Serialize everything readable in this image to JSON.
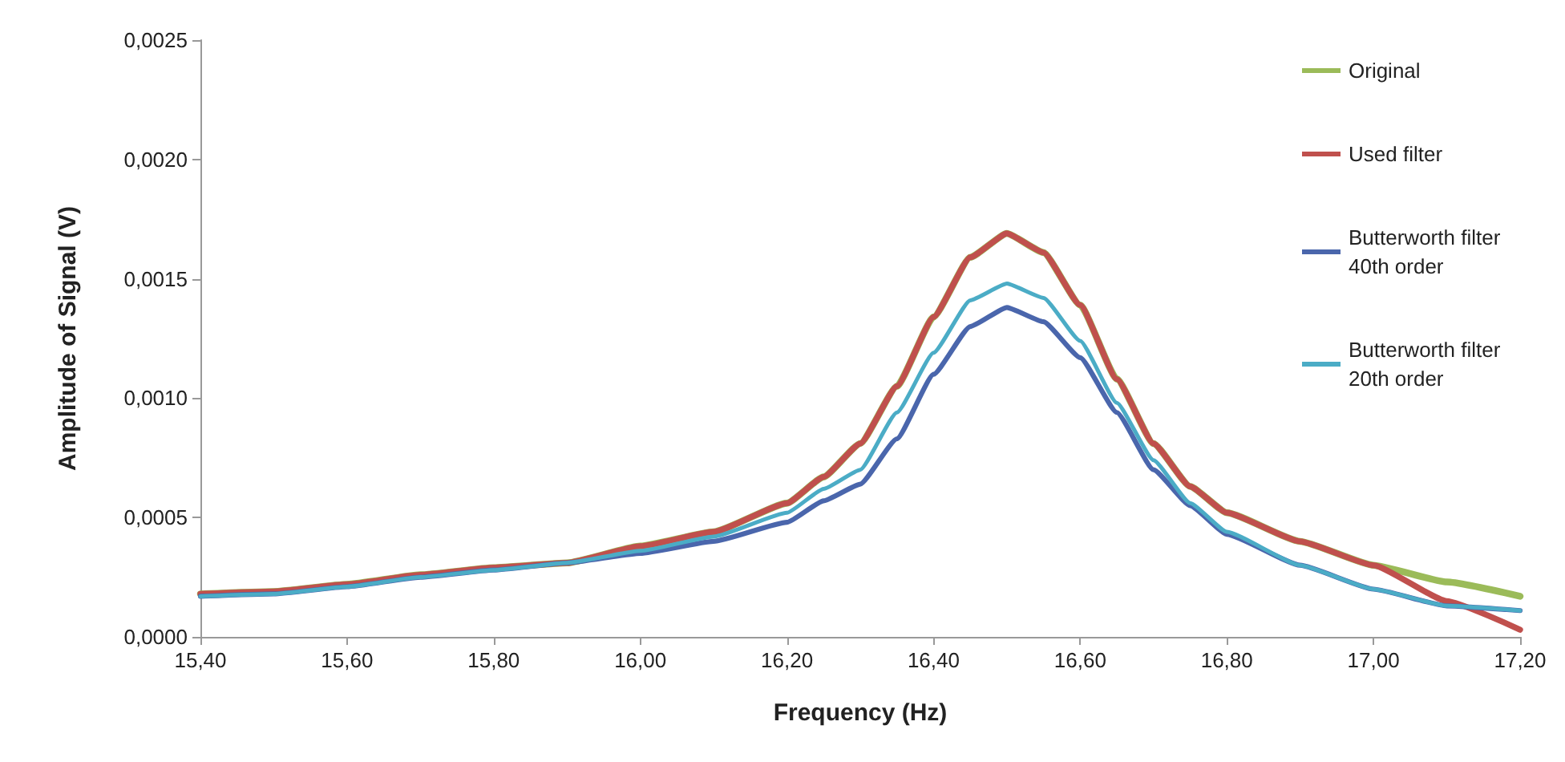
{
  "chart_data": {
    "type": "line",
    "xlabel": "Frequency (Hz)",
    "ylabel": "Amplitude of Signal (V)",
    "x": [
      15.4,
      15.5,
      15.6,
      15.7,
      15.8,
      15.9,
      16.0,
      16.1,
      16.2,
      16.25,
      16.3,
      16.35,
      16.4,
      16.45,
      16.5,
      16.55,
      16.6,
      16.65,
      16.7,
      16.75,
      16.8,
      16.9,
      17.0,
      17.1,
      17.2
    ],
    "series": [
      {
        "name": "Original",
        "color": "#9bbb59",
        "values": [
          0.00018,
          0.00019,
          0.00022,
          0.00026,
          0.00029,
          0.00031,
          0.00038,
          0.00044,
          0.00056,
          0.00067,
          0.00081,
          0.00105,
          0.00134,
          0.00159,
          0.00169,
          0.00161,
          0.00139,
          0.00108,
          0.00081,
          0.00063,
          0.00052,
          0.0004,
          0.0003,
          0.00023,
          0.00017
        ]
      },
      {
        "name": "Used filter",
        "color": "#c0504d",
        "values": [
          0.00018,
          0.00019,
          0.00022,
          0.00026,
          0.00029,
          0.00031,
          0.00038,
          0.00044,
          0.00056,
          0.00067,
          0.00081,
          0.00105,
          0.00134,
          0.00159,
          0.00169,
          0.00161,
          0.00139,
          0.00108,
          0.00081,
          0.00063,
          0.00052,
          0.0004,
          0.0003,
          0.00015,
          3e-05
        ]
      },
      {
        "name": "Butterworth filter 40th order",
        "color": "#4a66ac",
        "values": [
          0.00017,
          0.00018,
          0.00021,
          0.00025,
          0.00028,
          0.00031,
          0.00035,
          0.0004,
          0.00048,
          0.00057,
          0.00064,
          0.00083,
          0.0011,
          0.0013,
          0.00138,
          0.00132,
          0.00117,
          0.00094,
          0.0007,
          0.00055,
          0.00043,
          0.0003,
          0.0002,
          0.00013,
          0.00011
        ]
      },
      {
        "name": "Butterworth filter 20th order",
        "color": "#4bacc6",
        "values": [
          0.00017,
          0.00018,
          0.00021,
          0.00025,
          0.00028,
          0.00031,
          0.00036,
          0.00042,
          0.00052,
          0.00062,
          0.0007,
          0.00094,
          0.00119,
          0.00141,
          0.00148,
          0.00142,
          0.00124,
          0.00098,
          0.00074,
          0.00056,
          0.00044,
          0.0003,
          0.0002,
          0.00013,
          0.00011
        ]
      }
    ],
    "xlim": [
      15.4,
      17.2
    ],
    "xticks": [
      {
        "value": 15.4,
        "label": "15,40"
      },
      {
        "value": 15.6,
        "label": "15,60"
      },
      {
        "value": 15.8,
        "label": "15,80"
      },
      {
        "value": 16.0,
        "label": "16,00"
      },
      {
        "value": 16.2,
        "label": "16,20"
      },
      {
        "value": 16.4,
        "label": "16,40"
      },
      {
        "value": 16.6,
        "label": "16,60"
      },
      {
        "value": 16.8,
        "label": "16,80"
      },
      {
        "value": 17.0,
        "label": "17,00"
      },
      {
        "value": 17.2,
        "label": "17,20"
      }
    ],
    "ylim": [
      0,
      0.0025
    ],
    "yticks": [
      {
        "value": 0,
        "label": "0,0000"
      },
      {
        "value": 0.0005,
        "label": "0,0005"
      },
      {
        "value": 0.001,
        "label": "0,0010"
      },
      {
        "value": 0.0015,
        "label": "0,0015"
      },
      {
        "value": 0.002,
        "label": "0,0020"
      },
      {
        "value": 0.0025,
        "label": "0,0025"
      }
    ],
    "grid": false,
    "legend": "top right",
    "marker": "none",
    "line_style": "solid"
  }
}
